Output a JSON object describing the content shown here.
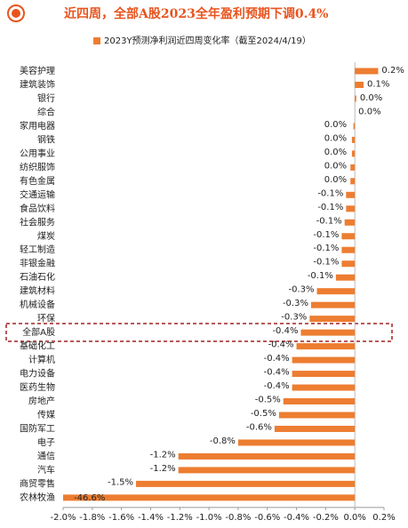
{
  "chart_data": {
    "type": "bar",
    "orientation": "horizontal",
    "title": "近四周，全部A股2023全年盈利预期下调0.4%",
    "series": [
      {
        "name": "2023Y预测净利润近四周变化率（截至2024/4/19）",
        "color": "#ED7D31",
        "values": [
          0.16,
          0.06,
          0.01,
          0.0,
          -0.01,
          -0.02,
          -0.02,
          -0.03,
          -0.03,
          -0.06,
          -0.06,
          -0.07,
          -0.09,
          -0.09,
          -0.09,
          -0.13,
          -0.26,
          -0.3,
          -0.31,
          -0.37,
          -0.4,
          -0.43,
          -0.43,
          -0.43,
          -0.49,
          -0.52,
          -0.55,
          -0.8,
          -1.21,
          -1.21,
          -1.5,
          -46.6
        ],
        "value_labels": [
          "0.2%",
          "0.1%",
          "0.0%",
          "0.0%",
          "0.0%",
          "0.0%",
          "0.0%",
          "0.0%",
          "0.0%",
          "-0.1%",
          "-0.1%",
          "-0.1%",
          "-0.1%",
          "-0.1%",
          "-0.1%",
          "-0.1%",
          "-0.3%",
          "-0.3%",
          "-0.3%",
          "-0.4%",
          "-0.4%",
          "-0.4%",
          "-0.4%",
          "-0.4%",
          "-0.5%",
          "-0.5%",
          "-0.6%",
          "-0.8%",
          "-1.2%",
          "-1.2%",
          "-1.5%",
          "-46.6%"
        ]
      }
    ],
    "categories": [
      "美容护理",
      "建筑装饰",
      "银行",
      "综合",
      "家用电器",
      "钢铁",
      "公用事业",
      "纺织服饰",
      "有色金属",
      "交通运输",
      "食品饮料",
      "社会服务",
      "煤炭",
      "轻工制造",
      "非银金融",
      "石油石化",
      "建筑材料",
      "机械设备",
      "环保",
      "全部A股",
      "基础化工",
      "计算机",
      "电力设备",
      "医药生物",
      "房地产",
      "传媒",
      "国防军工",
      "电子",
      "通信",
      "汽车",
      "商贸零售",
      "农林牧渔"
    ],
    "xlim": [
      -2.0,
      0.2
    ],
    "xticks": [
      {
        "value": -2.0,
        "label": "-2.0%"
      },
      {
        "value": -1.8,
        "label": "-1.8%"
      },
      {
        "value": -1.6,
        "label": "-1.6%"
      },
      {
        "value": -1.4,
        "label": "-1.4%"
      },
      {
        "value": -1.2,
        "label": "-1.2%"
      },
      {
        "value": -1.0,
        "label": "-1.0%"
      },
      {
        "value": -0.8,
        "label": "-0.8%"
      },
      {
        "value": -0.6,
        "label": "-0.6%"
      },
      {
        "value": -0.4,
        "label": "-0.4%"
      },
      {
        "value": -0.2,
        "label": "-0.2%"
      },
      {
        "value": 0.0,
        "label": "0.0%"
      },
      {
        "value": 0.2,
        "label": "0.2%"
      }
    ]
  }
}
